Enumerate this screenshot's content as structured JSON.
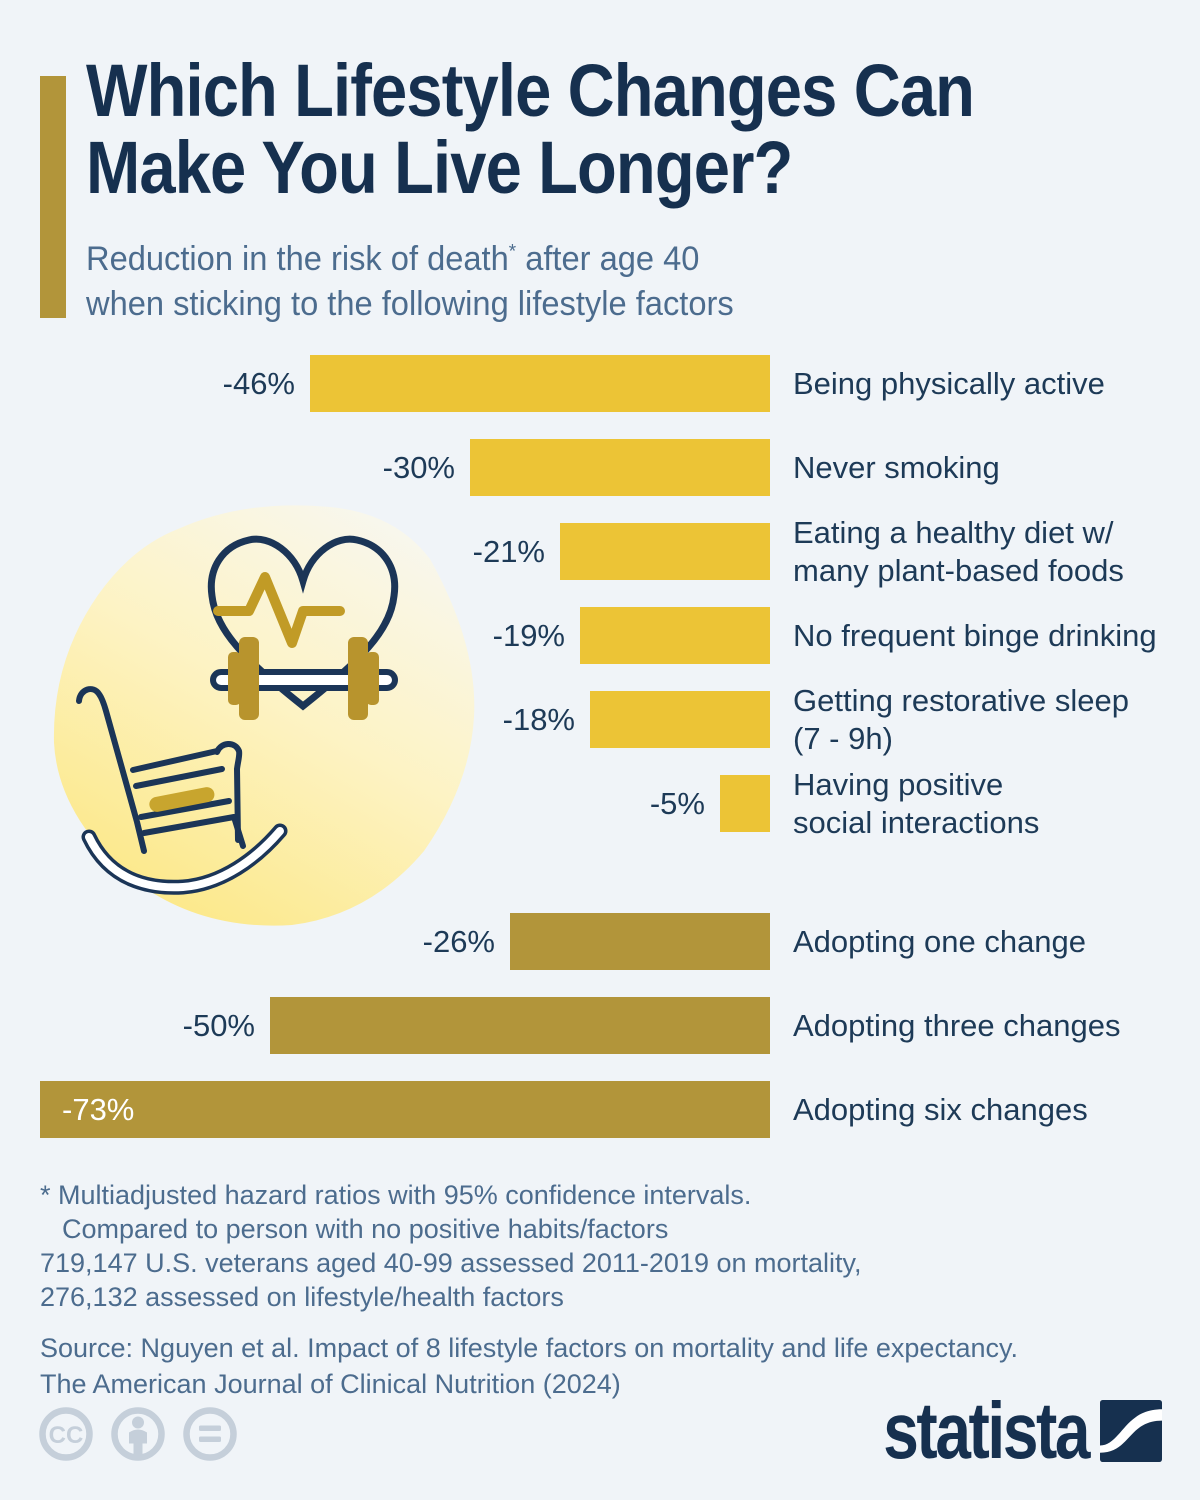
{
  "header": {
    "title_line1": "Which Lifestyle Changes Can",
    "title_line2": "Make You Live Longer?",
    "subtitle_line1_pre": "Reduction in the risk of death",
    "subtitle_asterisk": "*",
    "subtitle_line1_post": " after age 40",
    "subtitle_line2": "when sticking to the following lifestyle factors"
  },
  "chart_data": {
    "type": "bar",
    "orientation": "horizontal",
    "title": "Which Lifestyle Changes Can Make You Live Longer?",
    "xlabel": "Reduction in the risk of death after age 40 (%)",
    "ylabel": "",
    "xlim": [
      0,
      73
    ],
    "grid": false,
    "legend_position": "none",
    "groups": {
      "individual": {
        "color": "#ecc436"
      },
      "combined": {
        "color": "#b2953a"
      }
    },
    "rows": [
      {
        "label": "Being physically active",
        "value": -46,
        "value_label": "-46%",
        "group": "individual",
        "value_label_inside": false
      },
      {
        "label": "Never smoking",
        "value": -30,
        "value_label": "-30%",
        "group": "individual",
        "value_label_inside": false
      },
      {
        "label": "Eating a healthy diet w/\nmany plant-based foods",
        "value": -21,
        "value_label": "-21%",
        "group": "individual",
        "value_label_inside": false
      },
      {
        "label": "No frequent binge drinking",
        "value": -19,
        "value_label": "-19%",
        "group": "individual",
        "value_label_inside": false
      },
      {
        "label": "Getting restorative sleep\n(7 - 9h)",
        "value": -18,
        "value_label": "-18%",
        "group": "individual",
        "value_label_inside": false
      },
      {
        "label": "Having positive\nsocial interactions",
        "value": -5,
        "value_label": "-5%",
        "group": "individual",
        "value_label_inside": false
      },
      {
        "label": "Adopting one change",
        "value": -26,
        "value_label": "-26%",
        "group": "combined",
        "value_label_inside": false
      },
      {
        "label": "Adopting three changes",
        "value": -50,
        "value_label": "-50%",
        "group": "combined",
        "value_label_inside": false
      },
      {
        "label": "Adopting six changes",
        "value": -73,
        "value_label": "-73%",
        "group": "combined",
        "value_label_inside": true
      }
    ]
  },
  "illustration": {
    "name": "heart-pulse-dumbbell-rocking-chair",
    "blob_color_top": "#f8f7ee",
    "blob_color_bottom": "#fce782",
    "outline_color": "#1b3557",
    "gold_color": "#b8942d"
  },
  "footer": {
    "note_lines": [
      "* Multiadjusted hazard ratios with 95% confidence intervals.",
      "Compared to person with no positive habits/factors",
      "719,147 U.S. veterans aged 40-99 assessed 2011-2019 on mortality,",
      "276,132 assessed on lifestyle/health factors"
    ],
    "source_lines": [
      "Source: Nguyen et al. Impact of 8 lifestyle factors on mortality and life expectancy.",
      "The American Journal of Clinical Nutrition (2024)"
    ],
    "cc_label": "CC",
    "brand": "statista"
  },
  "colors": {
    "background": "#f0f4f8",
    "title_navy": "#16304f",
    "text_navy": "#1d3a57",
    "slate": "#4c6c8e",
    "bar_yellow": "#ecc436",
    "bar_gold": "#b2953a",
    "accent_gold": "#b2953a",
    "icon_gray": "#c5cfda",
    "white": "#ffffff"
  }
}
